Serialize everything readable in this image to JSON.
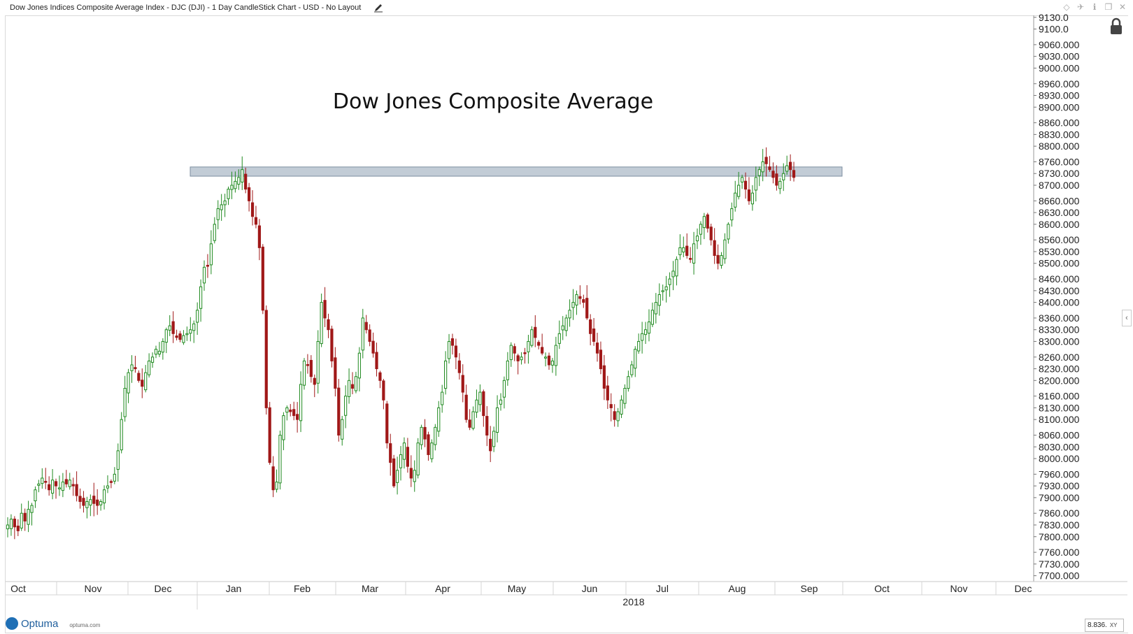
{
  "window": {
    "title": "Dow Jones Indices Composite Average Index  - DJC (DJI) - 1 Day CandleStick Chart - USD - No Layout",
    "icons": [
      "edit-icon",
      "diamond-icon",
      "pin-icon",
      "info-icon",
      "restore-icon",
      "close-icon"
    ]
  },
  "brand": {
    "name": "Optuma",
    "url": "optuma.com"
  },
  "price_box": {
    "value": "8.836.",
    "mode": "XY"
  },
  "colors": {
    "up": "#1f8a1f",
    "down": "#a01818",
    "band": "#b7c3cf",
    "band_border": "#7c8ea0"
  },
  "chart_data": {
    "type": "candlestick",
    "title": "Dow Jones Composite Average",
    "ylim": [
      7685,
      9135
    ],
    "x_months": [
      "Oct",
      "Nov",
      "Dec",
      "Jan",
      "Feb",
      "Mar",
      "Apr",
      "May",
      "Jun",
      "Jul",
      "Aug",
      "Sep",
      "Oct",
      "Nov",
      "Dec"
    ],
    "year_label": "2018",
    "y_ticks": [
      "9130.0",
      "9100.0",
      "9060.000",
      "9030.000",
      "9000.000",
      "8960.000",
      "8930.000",
      "8900.000",
      "8860.000",
      "8830.000",
      "8800.000",
      "8760.000",
      "8730.000",
      "8700.000",
      "8660.000",
      "8630.000",
      "8600.000",
      "8560.000",
      "8530.000",
      "8500.000",
      "8460.000",
      "8430.000",
      "8400.000",
      "8360.000",
      "8330.000",
      "8300.000",
      "8260.000",
      "8230.000",
      "8200.000",
      "8160.000",
      "8130.000",
      "8100.000",
      "8060.000",
      "8030.000",
      "8000.000",
      "7960.000",
      "7930.000",
      "7900.000",
      "7860.000",
      "7830.000",
      "7800.000",
      "7760.000",
      "7730.000",
      "7700.000"
    ],
    "resistance_band": {
      "low": 8725,
      "high": 8745,
      "from_bar": 64,
      "to_bar": 290
    },
    "closes": [
      7830,
      7845,
      7825,
      7815,
      7860,
      7840,
      7870,
      7880,
      7920,
      7935,
      7950,
      7940,
      7920,
      7945,
      7930,
      7925,
      7940,
      7935,
      7945,
      7930,
      7905,
      7890,
      7880,
      7890,
      7895,
      7885,
      7880,
      7890,
      7920,
      7930,
      7940,
      7960,
      8020,
      8100,
      8180,
      8220,
      8240,
      8230,
      8200,
      8185,
      8220,
      8250,
      8260,
      8280,
      8275,
      8300,
      8330,
      8340,
      8320,
      8310,
      8305,
      8315,
      8320,
      8330,
      8345,
      8380,
      8440,
      8490,
      8495,
      8550,
      8600,
      8640,
      8650,
      8660,
      8690,
      8700,
      8710,
      8720,
      8740,
      8690,
      8660,
      8620,
      8600,
      8540,
      8380,
      8130,
      7990,
      7920,
      7940,
      8060,
      8110,
      8130,
      8120,
      8110,
      8100,
      8190,
      8250,
      8240,
      8210,
      8190,
      8300,
      8400,
      8360,
      8330,
      8250,
      8180,
      8060,
      8100,
      8160,
      8200,
      8180,
      8210,
      8270,
      8360,
      8330,
      8300,
      8270,
      8230,
      8200,
      8150,
      8040,
      7990,
      7930,
      7970,
      8010,
      8040,
      7980,
      7950,
      7970,
      8040,
      8080,
      8050,
      8010,
      8040,
      8080,
      8130,
      8170,
      8250,
      8300,
      8290,
      8260,
      8220,
      8170,
      8100,
      8080,
      8120,
      8150,
      8170,
      8110,
      8060,
      8020,
      8070,
      8130,
      8150,
      8200,
      8250,
      8290,
      8270,
      8250,
      8260,
      8270,
      8300,
      8330,
      8310,
      8290,
      8270,
      8260,
      8240,
      8250,
      8290,
      8320,
      8340,
      8360,
      8380,
      8400,
      8420,
      8410,
      8400,
      8360,
      8320,
      8300,
      8270,
      8230,
      8180,
      8150,
      8130,
      8100,
      8120,
      8150,
      8180,
      8210,
      8240,
      8280,
      8300,
      8320,
      8330,
      8350,
      8380,
      8400,
      8420,
      8430,
      8440,
      8460,
      8480,
      8510,
      8540,
      8540,
      8520,
      8510,
      8550,
      8570,
      8600,
      8620,
      8590,
      8560,
      8520,
      8500,
      8520,
      8560,
      8600,
      8640,
      8680,
      8700,
      8720,
      8690,
      8660,
      8680,
      8720,
      8740,
      8760,
      8755,
      8740,
      8720,
      8700,
      8710,
      8730,
      8750,
      8740,
      8720
    ]
  }
}
